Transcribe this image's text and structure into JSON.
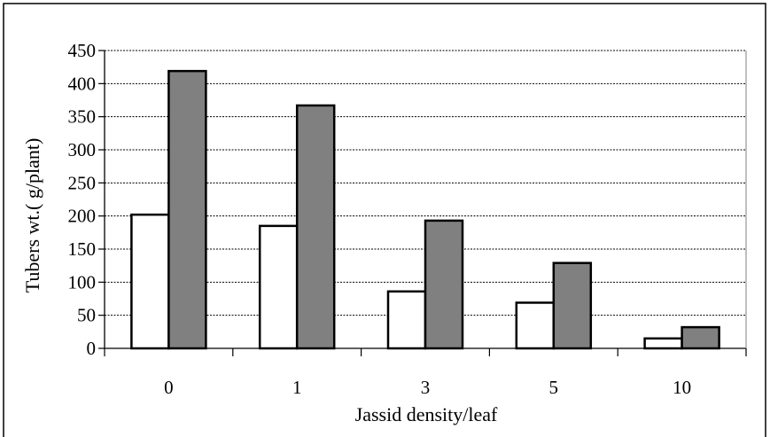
{
  "chart_data": {
    "type": "bar",
    "title": "",
    "xlabel": "Jassid density/leaf",
    "ylabel": "Tubers wt.( g/plant)",
    "categories": [
      "0",
      "1",
      "3",
      "5",
      "10"
    ],
    "series": [
      {
        "values": [
          202,
          185,
          86,
          69,
          15
        ],
        "color": "#ffffff"
      },
      {
        "values": [
          419,
          367,
          193,
          129,
          32
        ],
        "color": "#808080"
      }
    ],
    "ylim": [
      0,
      450
    ],
    "yticks": [
      0,
      50,
      100,
      150,
      200,
      250,
      300,
      350,
      400,
      450
    ],
    "grid": true,
    "legend": "none"
  }
}
